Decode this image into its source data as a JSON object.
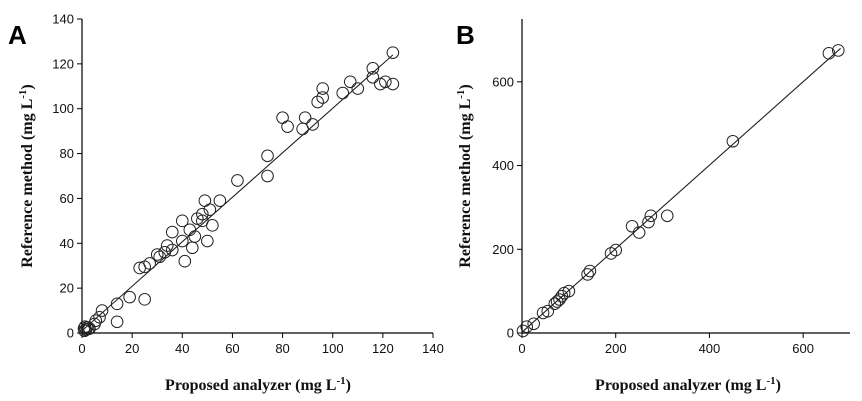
{
  "chart_data": [
    {
      "type": "scatter",
      "panel_label": "A",
      "xlabel": "Proposed analyzer (mg L",
      "ylabel": "Reference method (mg L",
      "unit_superscript": "-1",
      "unit_close": ")",
      "xlim": [
        0,
        140
      ],
      "ylim": [
        0,
        140
      ],
      "xticks": [
        0,
        20,
        40,
        60,
        80,
        100,
        120,
        140
      ],
      "yticks": [
        0,
        20,
        40,
        60,
        80,
        100,
        120,
        140
      ],
      "grid": false,
      "fit_line": {
        "x": [
          0,
          124
        ],
        "y": [
          1,
          124
        ]
      },
      "points": [
        [
          0.8,
          2
        ],
        [
          1.5,
          1.5
        ],
        [
          2,
          2.5
        ],
        [
          1,
          1
        ],
        [
          2.5,
          1.8
        ],
        [
          3,
          2
        ],
        [
          1.2,
          2.8
        ],
        [
          5,
          4
        ],
        [
          5.5,
          5.5
        ],
        [
          7,
          7
        ],
        [
          8,
          10
        ],
        [
          14,
          13
        ],
        [
          14,
          5
        ],
        [
          19,
          16
        ],
        [
          23,
          29
        ],
        [
          25,
          15
        ],
        [
          25,
          29.5
        ],
        [
          27,
          31
        ],
        [
          30,
          35
        ],
        [
          31,
          34
        ],
        [
          33,
          36
        ],
        [
          34,
          39
        ],
        [
          36,
          37
        ],
        [
          36,
          45
        ],
        [
          40,
          41
        ],
        [
          40,
          50
        ],
        [
          41,
          32
        ],
        [
          43,
          46
        ],
        [
          44,
          38
        ],
        [
          45,
          43
        ],
        [
          46,
          51
        ],
        [
          48,
          53
        ],
        [
          48,
          50
        ],
        [
          49,
          59
        ],
        [
          50,
          41
        ],
        [
          51,
          55
        ],
        [
          52,
          48
        ],
        [
          55,
          59
        ],
        [
          62,
          68
        ],
        [
          74,
          79
        ],
        [
          74,
          70
        ],
        [
          80,
          96
        ],
        [
          82,
          92
        ],
        [
          88,
          91
        ],
        [
          89,
          96
        ],
        [
          92,
          93
        ],
        [
          94,
          103
        ],
        [
          96,
          105
        ],
        [
          96,
          109
        ],
        [
          104,
          107
        ],
        [
          107,
          112
        ],
        [
          110,
          109
        ],
        [
          116,
          118
        ],
        [
          116,
          114
        ],
        [
          119,
          111
        ],
        [
          121,
          112
        ],
        [
          124,
          125
        ],
        [
          124,
          111
        ]
      ]
    },
    {
      "type": "scatter",
      "panel_label": "B",
      "xlabel": "Proposed analyzer (mg L",
      "ylabel": "Reference method (mg L",
      "unit_superscript": "-1",
      "unit_close": ")",
      "xlim": [
        0,
        700
      ],
      "ylim": [
        0,
        750
      ],
      "xticks": [
        0,
        200,
        400,
        600
      ],
      "yticks": [
        0,
        200,
        400,
        600
      ],
      "grid": false,
      "fit_line": {
        "x": [
          0,
          680
        ],
        "y": [
          2,
          680
        ]
      },
      "points": [
        [
          2,
          5
        ],
        [
          10,
          15
        ],
        [
          25,
          22
        ],
        [
          45,
          48
        ],
        [
          55,
          52
        ],
        [
          70,
          70
        ],
        [
          75,
          75
        ],
        [
          80,
          80
        ],
        [
          85,
          88
        ],
        [
          90,
          95
        ],
        [
          100,
          100
        ],
        [
          140,
          140
        ],
        [
          145,
          148
        ],
        [
          190,
          190
        ],
        [
          200,
          198
        ],
        [
          235,
          255
        ],
        [
          250,
          240
        ],
        [
          270,
          265
        ],
        [
          275,
          280
        ],
        [
          310,
          280
        ],
        [
          450,
          458
        ],
        [
          655,
          668
        ],
        [
          675,
          675
        ]
      ]
    }
  ]
}
